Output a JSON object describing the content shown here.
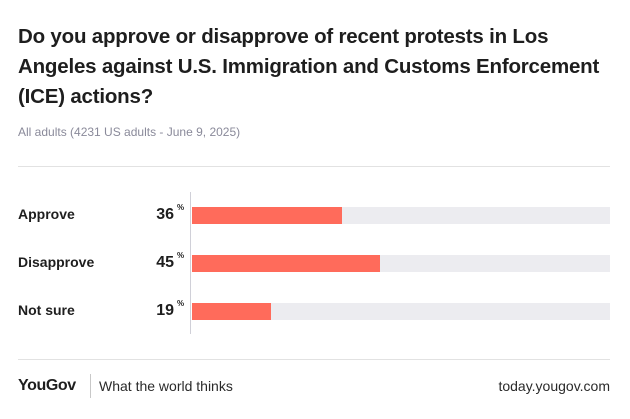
{
  "chart_data": {
    "type": "bar",
    "orientation": "horizontal",
    "title": "Do you approve or disapprove of recent protests in Los Angeles against U.S. Immigration and Customs Enforcement (ICE) actions?",
    "subtitle": "All adults (4231 US adults - June 9, 2025)",
    "categories": [
      "Approve",
      "Disapprove",
      "Not sure"
    ],
    "values": [
      36,
      45,
      19
    ],
    "unit": "%",
    "xlim": [
      0,
      100
    ],
    "bar_color": "#ff6b5b",
    "track_color": "#ececf0",
    "grid": false,
    "legend": "none"
  },
  "footer": {
    "logo": "YouGov",
    "tagline": "What the world thinks",
    "url": "today.yougov.com"
  }
}
